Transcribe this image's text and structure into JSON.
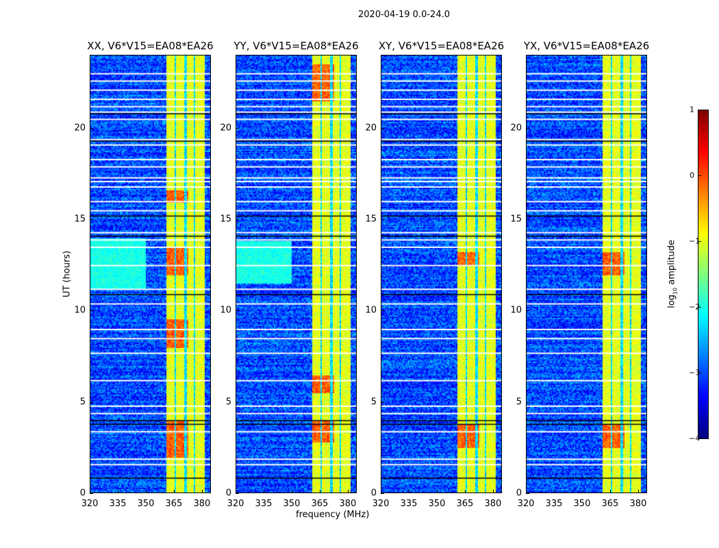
{
  "suptitle": "2020-04-19 0.0-24.0",
  "chart_data": {
    "type": "heatmap",
    "xlabel": "frequency (MHz)",
    "ylabel": "UT (hours)",
    "xlim": [
      320,
      384.8
    ],
    "ylim": [
      0,
      24
    ],
    "xticks": [
      320,
      335,
      350,
      365,
      380
    ],
    "yticks": [
      0,
      5,
      10,
      15,
      20
    ],
    "colorbar": {
      "label": "log10 amplitude",
      "label_main": "log",
      "label_sub": "10",
      "label_rest": " amplitude",
      "colormap": "jet",
      "range": [
        -4,
        1
      ],
      "ticks": [
        1,
        0,
        -1,
        -2,
        -3,
        -4
      ],
      "tick_labels": [
        "1",
        "0",
        "−1",
        "−2",
        "−3",
        "−4"
      ]
    },
    "panels": [
      {
        "title": "XX, V6*V15=EA08*EA26",
        "hot_hours": [
          [
            2,
            4
          ],
          [
            8,
            9.6
          ],
          [
            12,
            13.5
          ],
          [
            15.9,
            16.6
          ]
        ],
        "cyan_low_hours": [
          [
            11.2,
            14
          ]
        ]
      },
      {
        "title": "YY, V6*V15=EA08*EA26",
        "hot_hours": [
          [
            2.8,
            4
          ],
          [
            5.5,
            6.5
          ],
          [
            21.5,
            23.5
          ]
        ],
        "cyan_low_hours": [
          [
            11.5,
            13.8
          ]
        ]
      },
      {
        "title": "XY, V6*V15=EA08*EA26",
        "hot_hours": [
          [
            2.5,
            3.8
          ],
          [
            12.5,
            13.2
          ]
        ],
        "cyan_low_hours": []
      },
      {
        "title": "YX, V6*V15=EA08*EA26",
        "hot_hours": [
          [
            2.5,
            3.8
          ],
          [
            12,
            13.2
          ]
        ],
        "cyan_low_hours": []
      }
    ],
    "rfi_band_mhz": [
      361,
      380.8
    ],
    "rfi_band_gaps_mhz": [
      365.4,
      370.9,
      375.7
    ],
    "background_level": -3,
    "rfi_band_level": -1,
    "flagged_hours": [
      23.0,
      22.6,
      22.1,
      21.6,
      21.2,
      20.9,
      20.5,
      19.4,
      19.1,
      18.3,
      17.9,
      17.3,
      17.1,
      16.8,
      16.0,
      15.5,
      14.3,
      13.9,
      13.5,
      12.5,
      11.2,
      10.4,
      9.0,
      8.5,
      7.7,
      6.2,
      4.8,
      4.4,
      3.4,
      1.9,
      1.6
    ],
    "dark_lines_hours": [
      20.8,
      19.3,
      15.2,
      14.1,
      10.9,
      4.0,
      3.8,
      0.85
    ]
  }
}
